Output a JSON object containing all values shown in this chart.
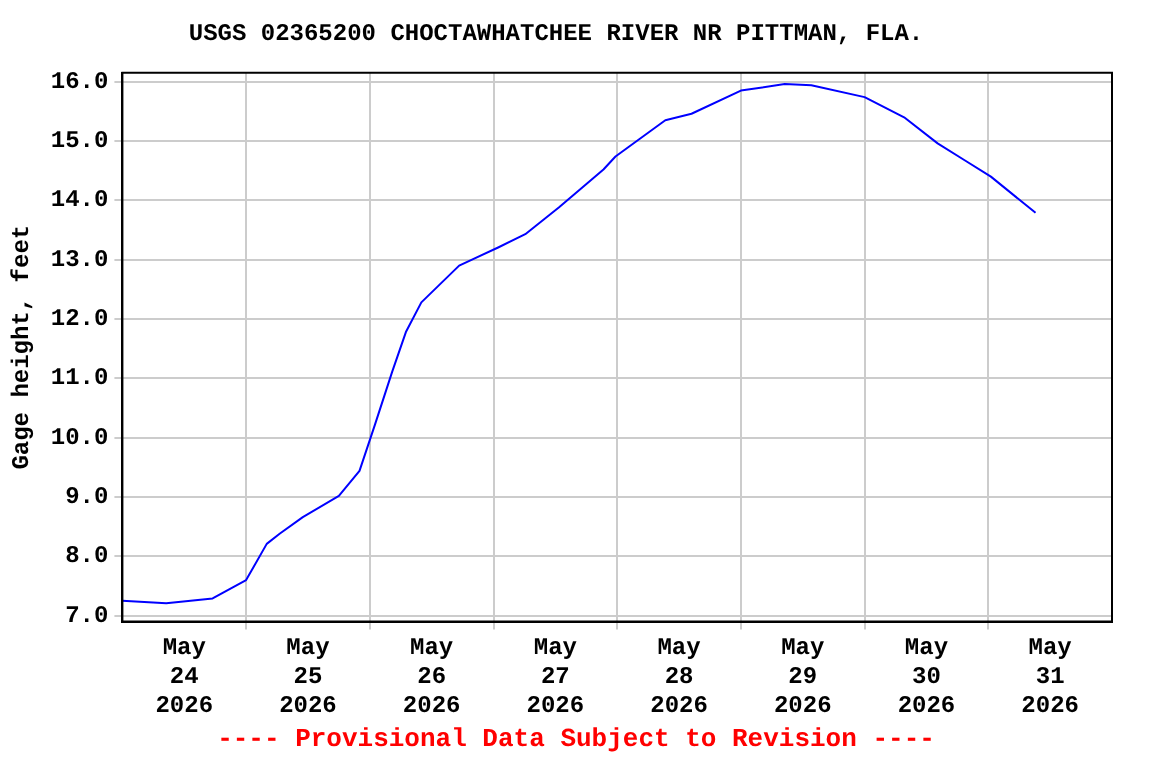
{
  "chart_data": {
    "type": "line",
    "title": "USGS 02365200 CHOCTAWHATCHEE RIVER NR PITTMAN, FLA.",
    "ylabel": "Gage height, feet",
    "annotations": [
      "---- Provisional Data Subject to Revision ----"
    ],
    "x": [
      "2026-05-24T00:00",
      "2026-05-24T08:30",
      "2026-05-24T17:30",
      "2026-05-25T00:00",
      "2026-05-25T04:00",
      "2026-05-25T06:30",
      "2026-05-25T11:00",
      "2026-05-25T18:00",
      "2026-05-25T22:00",
      "2026-05-26T01:00",
      "2026-05-26T04:20",
      "2026-05-26T07:00",
      "2026-05-26T10:00",
      "2026-05-26T17:20",
      "2026-05-27T01:00",
      "2026-05-27T06:10",
      "2026-05-27T12:40",
      "2026-05-27T21:20",
      "2026-05-27T23:40",
      "2026-05-28T09:20",
      "2026-05-28T14:25",
      "2026-05-29T00:00",
      "2026-05-29T08:30",
      "2026-05-29T13:40",
      "2026-05-30T00:00",
      "2026-05-30T07:40",
      "2026-05-30T14:10",
      "2026-05-30T19:20",
      "2026-05-31T00:30",
      "2026-05-31T09:10"
    ],
    "series": [
      {
        "color": "#0000ff",
        "values": [
          7.25,
          7.21,
          7.29,
          7.6,
          8.21,
          8.38,
          8.66,
          9.02,
          9.44,
          10.22,
          11.11,
          11.78,
          12.28,
          12.9,
          13.21,
          13.43,
          13.88,
          14.52,
          14.74,
          15.35,
          15.46,
          15.85,
          15.96,
          15.94,
          15.74,
          15.4,
          14.96,
          14.68,
          14.4,
          13.79
        ]
      }
    ],
    "xlim": [
      "2026-05-24T00:00",
      "2026-06-01T00:00"
    ],
    "xticks": [
      {
        "value": "2026-05-24T12:00",
        "label": "May 24 2026"
      },
      {
        "value": "2026-05-25T00:00",
        "label": null
      },
      {
        "value": "2026-05-25T12:00",
        "label": "May 25 2026"
      },
      {
        "value": "2026-05-26T00:00",
        "label": null
      },
      {
        "value": "2026-05-26T12:00",
        "label": "May 26 2026"
      },
      {
        "value": "2026-05-27T00:00",
        "label": null
      },
      {
        "value": "2026-05-27T12:00",
        "label": "May 27 2026"
      },
      {
        "value": "2026-05-28T00:00",
        "label": null
      },
      {
        "value": "2026-05-28T12:00",
        "label": "May 28 2026"
      },
      {
        "value": "2026-05-29T00:00",
        "label": null
      },
      {
        "value": "2026-05-29T12:00",
        "label": "May 29 2026"
      },
      {
        "value": "2026-05-30T00:00",
        "label": null
      },
      {
        "value": "2026-05-30T12:00",
        "label": "May 30 2026"
      },
      {
        "value": "2026-05-31T00:00",
        "label": null
      },
      {
        "value": "2026-05-31T12:00",
        "label": "May 31 2026"
      }
    ],
    "ylim": [
      6.9,
      16.15
    ],
    "yticks": [
      {
        "value": 7,
        "label": "7.0"
      },
      {
        "value": 8,
        "label": "8.0"
      },
      {
        "value": 9,
        "label": "9.0"
      },
      {
        "value": 10,
        "label": "10.0"
      },
      {
        "value": 11,
        "label": "11.0"
      },
      {
        "value": 12,
        "label": "12.0"
      },
      {
        "value": 13,
        "label": "13.0"
      },
      {
        "value": 14,
        "label": "14.0"
      },
      {
        "value": 15,
        "label": "15.0"
      },
      {
        "value": 16,
        "label": "16.0"
      }
    ],
    "grid": true,
    "legend": false,
    "marker": "none",
    "line_style": "solid"
  }
}
